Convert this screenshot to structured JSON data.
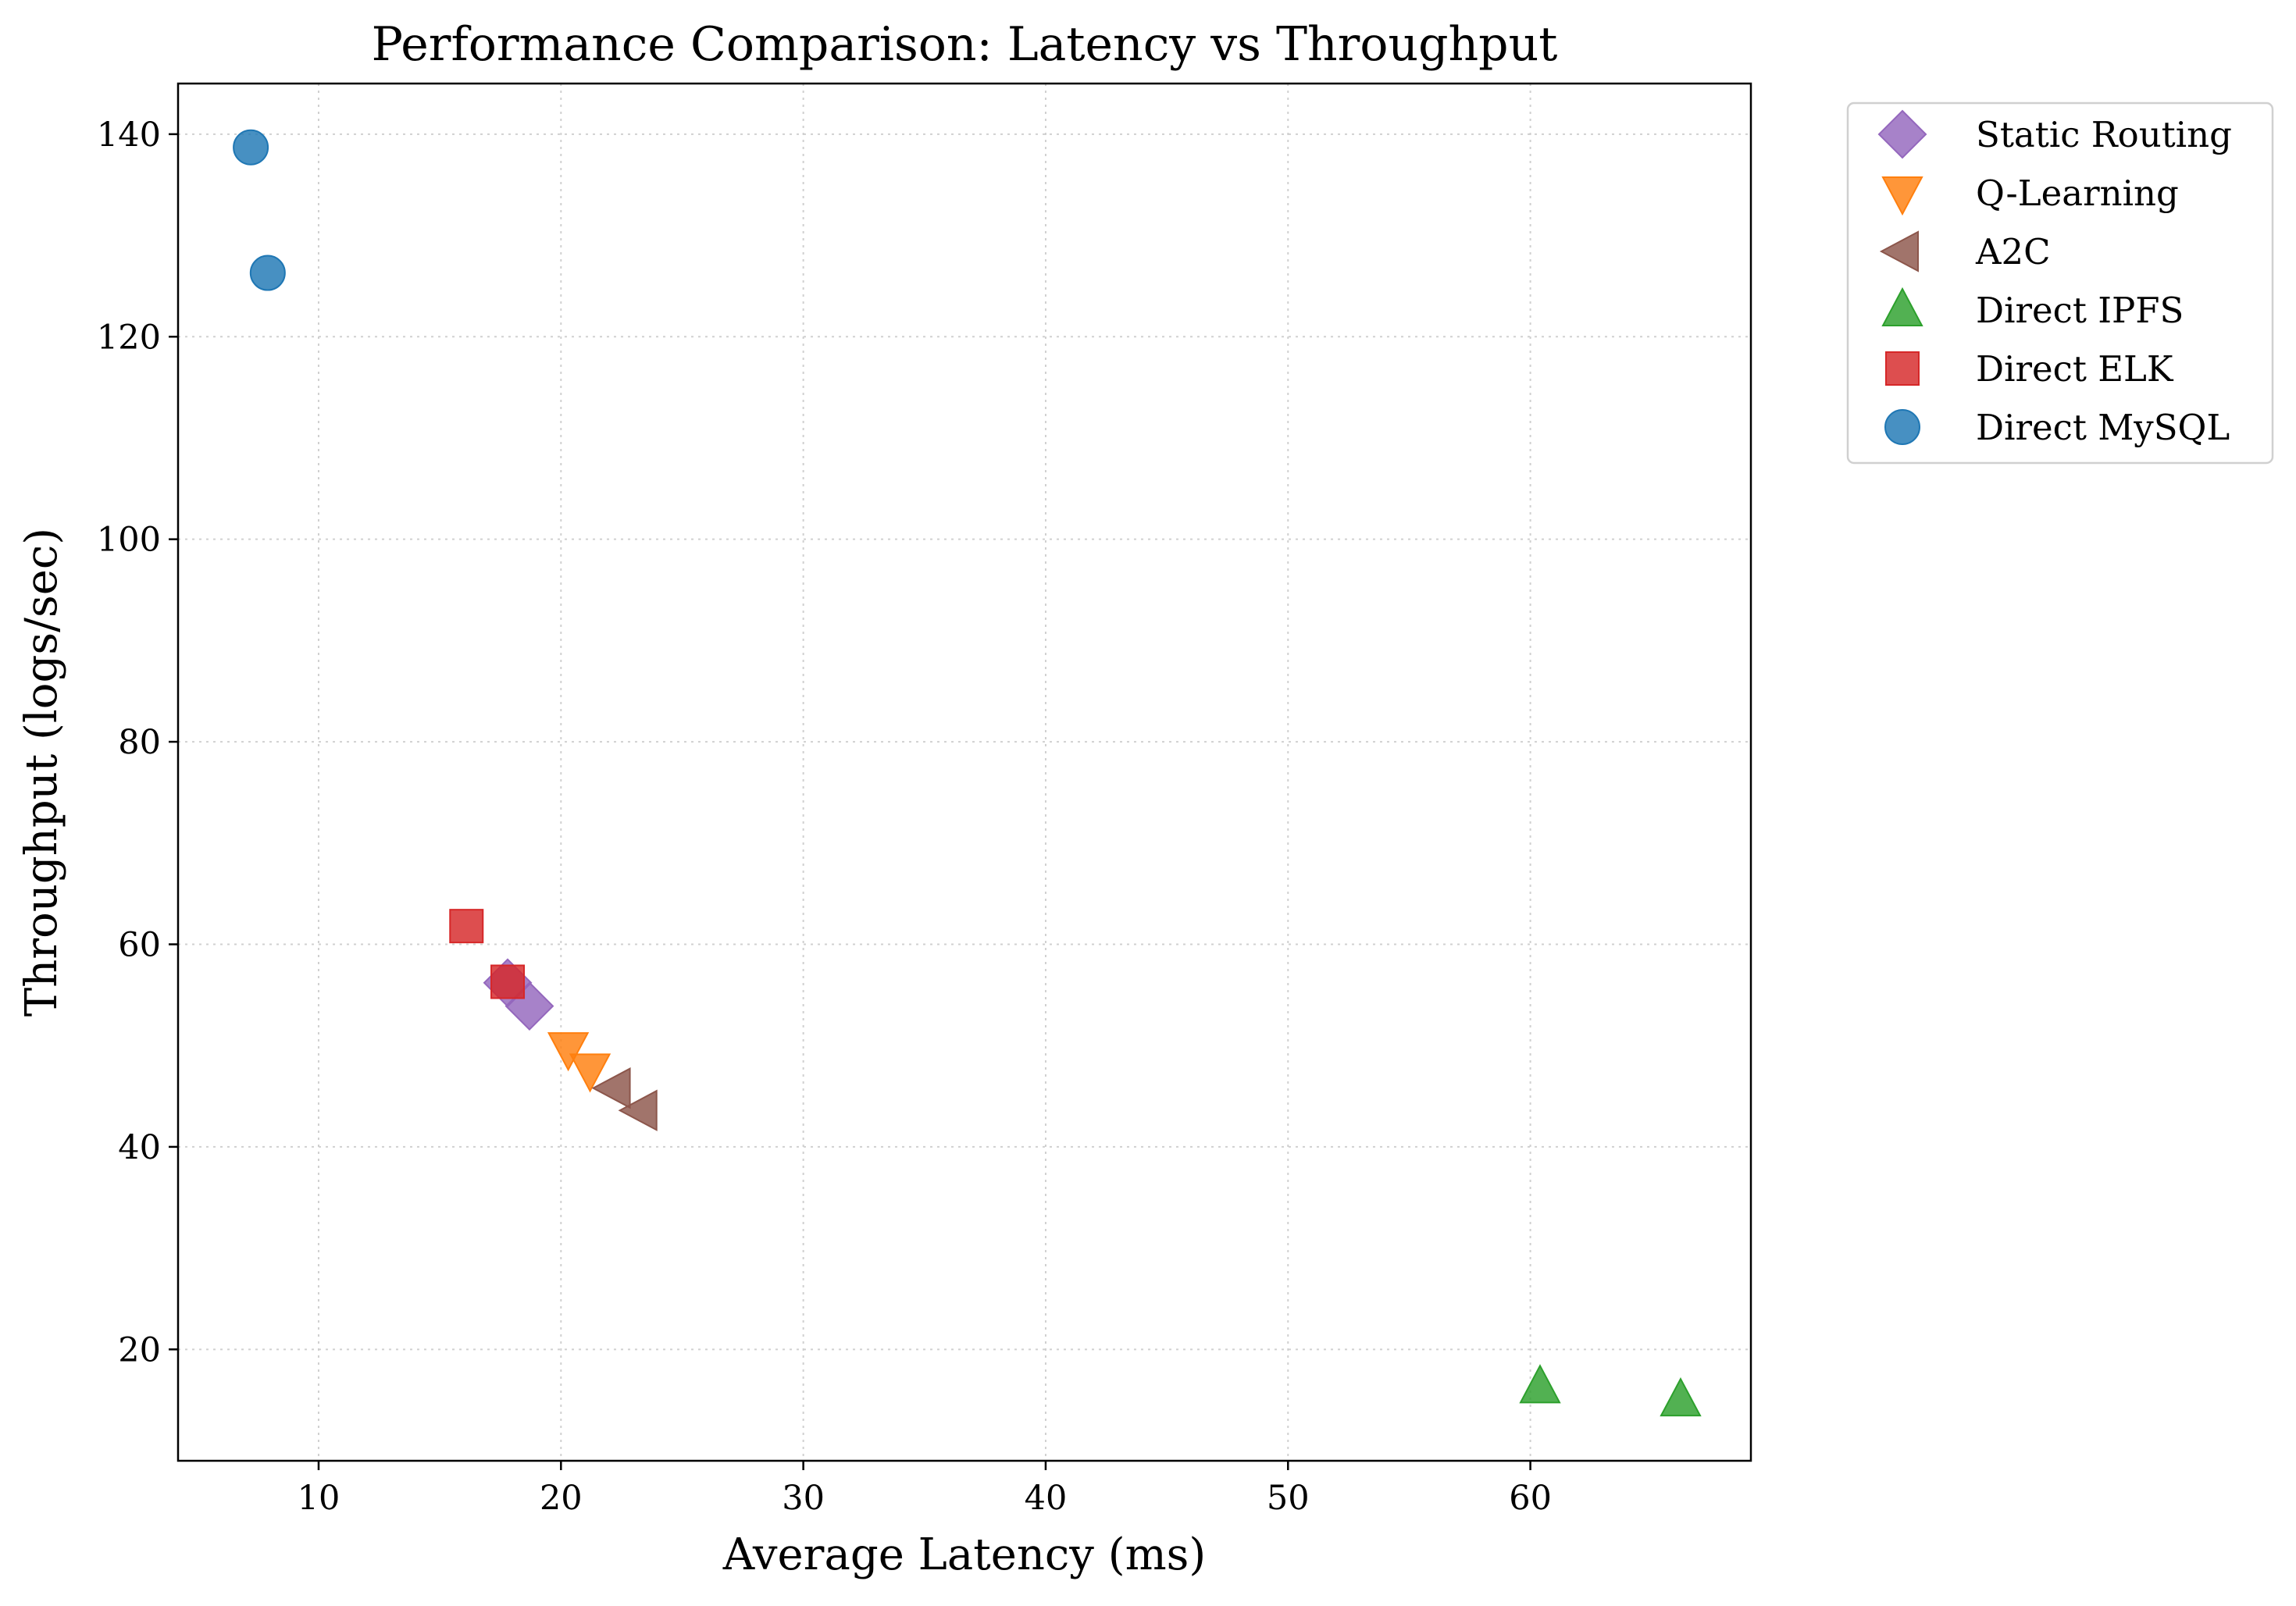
{
  "chart_data": {
    "type": "scatter",
    "title": "Performance Comparison: Latency vs Throughput",
    "xlabel": "Average Latency (ms)",
    "ylabel": "Throughput (logs/sec)",
    "xlim": [
      4.2,
      69.1
    ],
    "ylim": [
      9.0,
      145.0
    ],
    "xticks": [
      10,
      20,
      30,
      40,
      50,
      60
    ],
    "yticks": [
      20,
      40,
      60,
      80,
      100,
      120,
      140
    ],
    "grid": true,
    "legend_position": "outside-top-right",
    "series": [
      {
        "name": "Static Routing",
        "marker": "diamond",
        "color": "#9467bd",
        "points": [
          [
            17.8,
            56.2
          ],
          [
            18.7,
            53.9
          ]
        ]
      },
      {
        "name": "Q-Learning",
        "marker": "triangle-down",
        "color": "#ff7f0e",
        "points": [
          [
            20.3,
            49.7
          ],
          [
            21.2,
            47.6
          ]
        ]
      },
      {
        "name": "A2C",
        "marker": "triangle-left",
        "color": "#8c564b",
        "points": [
          [
            22.2,
            45.8
          ],
          [
            23.3,
            43.6
          ]
        ]
      },
      {
        "name": "Direct IPFS",
        "marker": "triangle-up",
        "color": "#2ca02c",
        "points": [
          [
            60.4,
            16.3
          ],
          [
            66.2,
            15.0
          ]
        ]
      },
      {
        "name": "Direct ELK",
        "marker": "square",
        "color": "#d62728",
        "points": [
          [
            16.1,
            61.8
          ],
          [
            17.8,
            56.3
          ]
        ]
      },
      {
        "name": "Direct MySQL",
        "marker": "circle",
        "color": "#1f77b4",
        "points": [
          [
            7.2,
            138.7
          ],
          [
            7.9,
            126.3
          ]
        ]
      }
    ]
  }
}
